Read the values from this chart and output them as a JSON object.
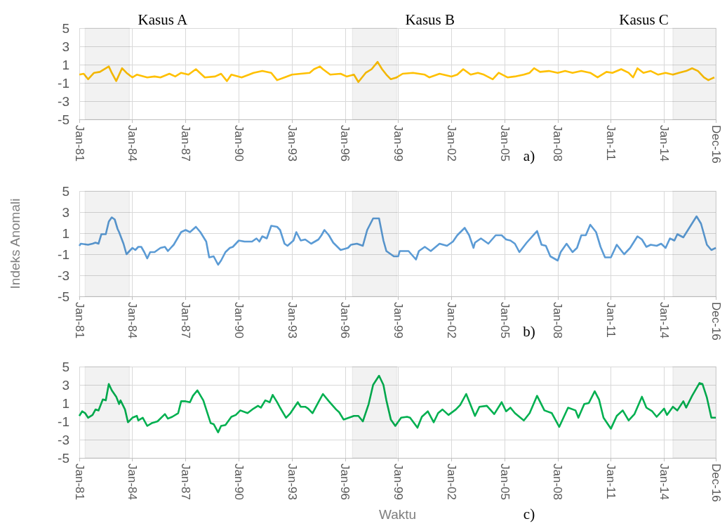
{
  "chart_data": [
    {
      "type": "line",
      "annotations": [
        "a)"
      ],
      "marker": "none",
      "grid": true,
      "ylim": [
        -5,
        5
      ],
      "yticks": [
        -5,
        -3,
        -1,
        1,
        3,
        5
      ],
      "xlim": [
        "1981-01",
        "2016-12"
      ],
      "xticks": [
        {
          "value": "1981-01",
          "label": "Jan-81"
        },
        {
          "value": "1984-01",
          "label": "Jan-84"
        },
        {
          "value": "1987-01",
          "label": "Jan-87"
        },
        {
          "value": "1990-01",
          "label": "Jan-90"
        },
        {
          "value": "1993-01",
          "label": "Jan-93"
        },
        {
          "value": "1996-01",
          "label": "Jan-96"
        },
        {
          "value": "1999-01",
          "label": "Jan-99"
        },
        {
          "value": "2002-01",
          "label": "Jan-02"
        },
        {
          "value": "2005-01",
          "label": "Jan-05"
        },
        {
          "value": "2008-01",
          "label": "Jan-08"
        },
        {
          "value": "2011-01",
          "label": "Jan-11"
        },
        {
          "value": "2014-01",
          "label": "Jan-14"
        },
        {
          "value": "2016-12",
          "label": "Dec-16"
        }
      ],
      "bands": [
        {
          "axis": "x",
          "from": "1981-05",
          "to": "1983-11",
          "label": "Kasus A",
          "color": "#000000"
        },
        {
          "axis": "x",
          "from": "1996-06",
          "to": "1998-12",
          "label": "Kasus B",
          "color": "#000000"
        },
        {
          "axis": "x",
          "from": "2014-07",
          "to": "2016-12",
          "label": "Kasus C",
          "color": "#000000"
        }
      ],
      "x": [
        "1981-01",
        "1981-04",
        "1981-07",
        "1981-11",
        "1982-03",
        "1982-09",
        "1982-11",
        "1983-02",
        "1983-06",
        "1983-09",
        "1984-01",
        "1984-04",
        "1984-11",
        "1985-04",
        "1985-08",
        "1986-02",
        "1986-06",
        "1986-10",
        "1987-03",
        "1987-08",
        "1988-02",
        "1988-09",
        "1989-01",
        "1989-05",
        "1989-08",
        "1990-03",
        "1990-08",
        "1990-11",
        "1991-05",
        "1991-11",
        "1992-03",
        "1992-08",
        "1993-01",
        "1993-07",
        "1994-01",
        "1994-04",
        "1994-08",
        "1994-10",
        "1995-03",
        "1995-10",
        "1996-02",
        "1996-07",
        "1996-10",
        "1997-03",
        "1997-07",
        "1997-11",
        "1998-02",
        "1998-05",
        "1998-08",
        "1998-12",
        "1999-04",
        "1999-11",
        "2000-07",
        "2000-10",
        "2001-05",
        "2002-01",
        "2002-05",
        "2002-09",
        "2003-02",
        "2003-07",
        "2003-11",
        "2004-05",
        "2004-09",
        "2005-03",
        "2005-08",
        "2006-02",
        "2006-06",
        "2006-09",
        "2007-01",
        "2007-07",
        "2008-01",
        "2008-06",
        "2008-11",
        "2009-05",
        "2009-11",
        "2010-04",
        "2010-10",
        "2011-02",
        "2011-08",
        "2012-01",
        "2012-04",
        "2012-07",
        "2012-11",
        "2013-04",
        "2013-09",
        "2014-02",
        "2014-07",
        "2014-11",
        "2015-04",
        "2015-08",
        "2015-12",
        "2016-04",
        "2016-07",
        "2016-11"
      ],
      "series": [
        {
          "color": "#ffc000",
          "values": [
            -0.1,
            0,
            -0.6,
            0.1,
            0.2,
            0.8,
            0.1,
            -0.8,
            0.6,
            0.1,
            -0.4,
            -0.1,
            -0.4,
            -0.3,
            -0.4,
            0,
            -0.3,
            0.1,
            -0.1,
            0.5,
            -0.4,
            -0.3,
            0,
            -0.8,
            -0.1,
            -0.4,
            -0.1,
            0.1,
            0.3,
            0.1,
            -0.7,
            -0.4,
            -0.1,
            0,
            0.1,
            0.5,
            0.8,
            0.5,
            -0.1,
            0,
            -0.3,
            -0.1,
            -0.9,
            0.1,
            0.5,
            1.3,
            0.5,
            -0.1,
            -0.6,
            -0.4,
            0,
            0.1,
            -0.1,
            -0.4,
            0,
            -0.3,
            -0.1,
            0.5,
            -0.1,
            0.1,
            -0.1,
            -0.6,
            0.1,
            -0.4,
            -0.3,
            -0.1,
            0.1,
            0.6,
            0.2,
            0.3,
            0.1,
            0.3,
            0.1,
            0.3,
            0.1,
            -0.4,
            0.2,
            0.1,
            0.5,
            0.1,
            -0.4,
            0.6,
            0.1,
            0.3,
            -0.1,
            0.1,
            -0.1,
            0.1,
            0.3,
            0.6,
            0.3,
            -0.4,
            -0.7,
            -0.4
          ]
        }
      ]
    },
    {
      "type": "line",
      "ylabel": "Indeks Anomali",
      "annotations": [
        "b)"
      ],
      "marker": "none",
      "grid": true,
      "ylim": [
        -5,
        5
      ],
      "yticks": [
        -5,
        -3,
        -1,
        1,
        3,
        5
      ],
      "xlim": [
        "1981-01",
        "2016-12"
      ],
      "xticks": [
        {
          "value": "1981-01",
          "label": "Jan-81"
        },
        {
          "value": "1984-01",
          "label": "Jan-84"
        },
        {
          "value": "1987-01",
          "label": "Jan-87"
        },
        {
          "value": "1990-01",
          "label": "Jan-90"
        },
        {
          "value": "1993-01",
          "label": "Jan-93"
        },
        {
          "value": "1996-01",
          "label": "Jan-96"
        },
        {
          "value": "1999-01",
          "label": "Jan-99"
        },
        {
          "value": "2002-01",
          "label": "Jan-02"
        },
        {
          "value": "2005-01",
          "label": "Jan-05"
        },
        {
          "value": "2008-01",
          "label": "Jan-08"
        },
        {
          "value": "2011-01",
          "label": "Jan-11"
        },
        {
          "value": "2014-01",
          "label": "Jan-14"
        },
        {
          "value": "2016-12",
          "label": "Dec-16"
        }
      ],
      "bands": [
        {
          "axis": "x",
          "from": "1981-05",
          "to": "1983-11",
          "color": "#000000"
        },
        {
          "axis": "x",
          "from": "1996-06",
          "to": "1998-12",
          "color": "#000000"
        },
        {
          "axis": "x",
          "from": "2014-07",
          "to": "2016-12",
          "color": "#000000"
        }
      ],
      "x": [
        "1981-01",
        "1981-02",
        "1981-07",
        "1981-10",
        "1981-12",
        "1982-02",
        "1982-04",
        "1982-07",
        "1982-09",
        "1982-11",
        "1983-01",
        "1983-03",
        "1983-04",
        "1983-07",
        "1983-09",
        "1984-01",
        "1984-03",
        "1984-05",
        "1984-07",
        "1984-09",
        "1984-11",
        "1985-01",
        "1985-04",
        "1985-08",
        "1985-11",
        "1986-01",
        "1986-03",
        "1986-05",
        "1986-10",
        "1987-01",
        "1987-04",
        "1987-08",
        "1987-11",
        "1988-03",
        "1988-05",
        "1988-08",
        "1988-11",
        "1989-01",
        "1989-04",
        "1989-07",
        "1989-09",
        "1990-01",
        "1990-05",
        "1990-10",
        "1991-01",
        "1991-03",
        "1991-05",
        "1991-08",
        "1991-11",
        "1992-03",
        "1992-05",
        "1992-08",
        "1992-10",
        "1993-02",
        "1993-04",
        "1993-07",
        "1993-10",
        "1994-02",
        "1994-07",
        "1994-09",
        "1994-11",
        "1995-02",
        "1995-05",
        "1995-10",
        "1996-03",
        "1996-05",
        "1996-09",
        "1997-01",
        "1997-04",
        "1997-08",
        "1997-12",
        "1998-03",
        "1998-05",
        "1998-10",
        "1999-01",
        "1999-02",
        "1999-08",
        "2000-01",
        "2000-03",
        "2000-07",
        "2000-11",
        "2001-05",
        "2001-10",
        "2002-02",
        "2002-05",
        "2002-10",
        "2003-01",
        "2003-04",
        "2003-05",
        "2003-09",
        "2004-02",
        "2004-07",
        "2004-11",
        "2005-02",
        "2005-05",
        "2005-08",
        "2005-11",
        "2006-04",
        "2006-11",
        "2007-02",
        "2007-05",
        "2007-08",
        "2008-01",
        "2008-03",
        "2008-07",
        "2008-11",
        "2009-02",
        "2009-05",
        "2009-08",
        "2009-11",
        "2010-03",
        "2010-06",
        "2010-09",
        "2011-01",
        "2011-05",
        "2011-10",
        "2012-02",
        "2012-07",
        "2012-10",
        "2013-01",
        "2013-04",
        "2013-08",
        "2013-11",
        "2014-02",
        "2014-05",
        "2014-08",
        "2014-10",
        "2015-02",
        "2015-07",
        "2015-11",
        "2016-02",
        "2016-06",
        "2016-09",
        "2016-12"
      ],
      "series": [
        {
          "color": "#5b9bd5",
          "values": [
            -0.2,
            0,
            -0.1,
            0,
            0.1,
            0,
            0.9,
            0.9,
            2.1,
            2.5,
            2.3,
            1.4,
            1.1,
            0,
            -1.0,
            -0.4,
            -0.6,
            -0.3,
            -0.3,
            -0.8,
            -1.4,
            -0.8,
            -0.8,
            -0.4,
            -0.3,
            -0.7,
            -0.4,
            -0.1,
            1.1,
            1.3,
            1.1,
            1.6,
            1.1,
            0.2,
            -1.3,
            -1.2,
            -2.0,
            -1.6,
            -0.8,
            -0.4,
            -0.3,
            0.3,
            0.2,
            0.2,
            0.5,
            0.2,
            0.7,
            0.5,
            1.7,
            1.6,
            1.3,
            0,
            -0.2,
            0.3,
            1.1,
            0.3,
            0.4,
            0,
            0.4,
            0.8,
            1.3,
            0.8,
            0.1,
            -0.6,
            -0.4,
            -0.1,
            0,
            -0.2,
            1.3,
            2.4,
            2.4,
            0.3,
            -0.7,
            -1.2,
            -1.2,
            -0.7,
            -0.7,
            -1.5,
            -0.7,
            -0.3,
            -0.7,
            0,
            -0.2,
            0.2,
            0.8,
            1.5,
            0.8,
            -0.4,
            0.1,
            0.5,
            0,
            0.8,
            0.8,
            0.4,
            0.3,
            0,
            -0.8,
            0.1,
            1.2,
            -0.1,
            -0.2,
            -1.2,
            -1.6,
            -0.8,
            0,
            -0.8,
            -0.4,
            0.8,
            0.8,
            1.8,
            1.1,
            -0.3,
            -1.3,
            -1.3,
            -0.1,
            -1.0,
            -0.4,
            0.7,
            0.4,
            -0.3,
            -0.1,
            -0.2,
            0,
            -0.4,
            0.5,
            0.3,
            0.9,
            0.6,
            1.7,
            2.6,
            1.9,
            -0.1,
            -0.6,
            -0.4
          ]
        }
      ]
    },
    {
      "type": "line",
      "xlabel": "Waktu",
      "annotations": [
        "c)"
      ],
      "marker": "none",
      "grid": true,
      "ylim": [
        -5,
        5
      ],
      "yticks": [
        -5,
        -3,
        -1,
        1,
        3,
        5
      ],
      "xlim": [
        "1981-01",
        "2016-12"
      ],
      "xticks": [
        {
          "value": "1981-01",
          "label": "Jan-81"
        },
        {
          "value": "1984-01",
          "label": "Jan-84"
        },
        {
          "value": "1987-01",
          "label": "Jan-87"
        },
        {
          "value": "1990-01",
          "label": "Jan-90"
        },
        {
          "value": "1993-01",
          "label": "Jan-93"
        },
        {
          "value": "1996-01",
          "label": "Jan-96"
        },
        {
          "value": "1999-01",
          "label": "Jan-99"
        },
        {
          "value": "2002-01",
          "label": "Jan-02"
        },
        {
          "value": "2005-01",
          "label": "Jan-05"
        },
        {
          "value": "2008-01",
          "label": "Jan-08"
        },
        {
          "value": "2011-01",
          "label": "Jan-11"
        },
        {
          "value": "2014-01",
          "label": "Jan-14"
        },
        {
          "value": "2016-12",
          "label": "Dec-16"
        }
      ],
      "bands": [
        {
          "axis": "x",
          "from": "1981-05",
          "to": "1983-11",
          "color": "#000000"
        },
        {
          "axis": "x",
          "from": "1996-06",
          "to": "1998-12",
          "color": "#000000"
        },
        {
          "axis": "x",
          "from": "2014-07",
          "to": "2016-12",
          "color": "#000000"
        }
      ],
      "x": [
        "1981-01",
        "1981-03",
        "1981-05",
        "1981-07",
        "1981-10",
        "1981-12",
        "1982-02",
        "1982-05",
        "1982-07",
        "1982-09",
        "1982-11",
        "1983-02",
        "1983-04",
        "1983-05",
        "1983-08",
        "1983-10",
        "1984-01",
        "1984-04",
        "1984-05",
        "1984-08",
        "1984-11",
        "1985-02",
        "1985-06",
        "1985-11",
        "1986-01",
        "1986-04",
        "1986-08",
        "1986-10",
        "1987-01",
        "1987-04",
        "1987-06",
        "1987-09",
        "1988-01",
        "1988-06",
        "1988-08",
        "1988-11",
        "1989-01",
        "1989-04",
        "1989-08",
        "1989-11",
        "1990-02",
        "1990-07",
        "1990-11",
        "1991-02",
        "1991-04",
        "1991-07",
        "1991-10",
        "1991-12",
        "1992-03",
        "1992-05",
        "1992-09",
        "1992-12",
        "1993-05",
        "1993-07",
        "1993-10",
        "1993-12",
        "1994-03",
        "1994-07",
        "1994-10",
        "1995-02",
        "1995-07",
        "1995-09",
        "1995-12",
        "1996-07",
        "1996-10",
        "1997-01",
        "1997-05",
        "1997-08",
        "1997-12",
        "1998-03",
        "1998-05",
        "1998-08",
        "1998-11",
        "1999-03",
        "1999-07",
        "1999-09",
        "2000-02",
        "2000-05",
        "2000-09",
        "2001-01",
        "2001-04",
        "2001-07",
        "2001-11",
        "2002-04",
        "2002-07",
        "2002-11",
        "2003-01",
        "2003-05",
        "2003-08",
        "2004-01",
        "2004-06",
        "2004-11",
        "2005-02",
        "2005-05",
        "2005-08",
        "2006-02",
        "2006-06",
        "2006-11",
        "2007-04",
        "2007-09",
        "2008-02",
        "2008-08",
        "2009-01",
        "2009-03",
        "2009-07",
        "2009-10",
        "2010-02",
        "2010-05",
        "2010-08",
        "2011-01",
        "2011-05",
        "2011-09",
        "2012-01",
        "2012-05",
        "2012-10",
        "2013-01",
        "2013-05",
        "2013-08",
        "2014-01",
        "2014-03",
        "2014-07",
        "2014-10",
        "2015-02",
        "2015-04",
        "2015-08",
        "2016-01",
        "2016-03",
        "2016-06",
        "2016-09",
        "2016-12"
      ],
      "series": [
        {
          "color": "#00b050",
          "values": [
            -0.4,
            0.1,
            -0.1,
            -0.6,
            -0.3,
            0.3,
            0.2,
            1.4,
            1.3,
            3.1,
            2.4,
            1.7,
            0.9,
            1.3,
            0.3,
            -1.1,
            -0.6,
            -0.4,
            -0.9,
            -0.6,
            -1.5,
            -1.2,
            -1.0,
            -0.2,
            -0.7,
            -0.5,
            -0.1,
            1.2,
            1.2,
            1.1,
            1.8,
            2.4,
            1.3,
            -1.2,
            -1.3,
            -2.2,
            -1.5,
            -1.4,
            -0.5,
            -0.3,
            0.2,
            -0.1,
            0.4,
            0.7,
            0.5,
            1.3,
            1.1,
            1.9,
            1.1,
            0.5,
            -0.6,
            -0.1,
            1.1,
            0.6,
            0.6,
            0.4,
            -0.1,
            1.1,
            2.0,
            1.2,
            0.3,
            0,
            -0.8,
            -0.4,
            -0.4,
            -1.0,
            0.9,
            3.0,
            4.0,
            3.0,
            1.3,
            -0.8,
            -1.5,
            -0.6,
            -0.5,
            -0.6,
            -1.7,
            -0.5,
            0.1,
            -1.1,
            -0.1,
            0.3,
            -0.3,
            0.3,
            0.8,
            2.0,
            1.2,
            -0.4,
            0.6,
            0.7,
            -0.2,
            1.1,
            0.1,
            0.5,
            -0.1,
            -0.9,
            -0.1,
            1.8,
            0.2,
            -0.1,
            -1.6,
            0.5,
            0.2,
            -0.6,
            0.9,
            1.0,
            2.3,
            1.4,
            -0.6,
            -1.8,
            -0.4,
            0.2,
            -0.9,
            -0.2,
            1.7,
            0.5,
            0.1,
            -0.5,
            0.4,
            -0.3,
            0.6,
            0.2,
            1.2,
            0.5,
            1.8,
            3.2,
            3.1,
            1.6,
            -0.6,
            -0.6
          ]
        }
      ]
    }
  ]
}
